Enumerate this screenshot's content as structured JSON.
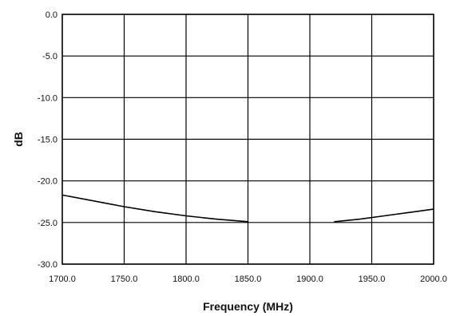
{
  "chart_data": {
    "type": "line",
    "title": "",
    "xlabel": "Frequency (MHz)",
    "ylabel": "dB",
    "xlim": [
      1700,
      2000
    ],
    "ylim": [
      -30,
      0
    ],
    "x_ticks": [
      1700,
      1750,
      1800,
      1850,
      1900,
      1950,
      2000
    ],
    "y_ticks": [
      0,
      -5,
      -10,
      -15,
      -20,
      -25,
      -30
    ],
    "x_tick_labels": [
      "1700.0",
      "1750.0",
      "1800.0",
      "1850.0",
      "1900.0",
      "1950.0",
      "2000.0"
    ],
    "y_tick_labels": [
      "0.0",
      "-5.0",
      "-10.0",
      "-15.0",
      "-20.0",
      "-25.0",
      "-30.0"
    ],
    "grid": true,
    "legend": "none",
    "series": [
      {
        "color": "#000000",
        "segments": [
          {
            "x": [
              1700,
              1725,
              1750,
              1775,
              1800,
              1825,
              1850
            ],
            "y": [
              -21.7,
              -22.4,
              -23.1,
              -23.7,
              -24.2,
              -24.6,
              -24.9
            ]
          },
          {
            "x": [
              1920,
              1940,
              1960,
              1980,
              2000
            ],
            "y": [
              -24.9,
              -24.6,
              -24.2,
              -23.8,
              -23.4
            ]
          }
        ]
      }
    ]
  }
}
